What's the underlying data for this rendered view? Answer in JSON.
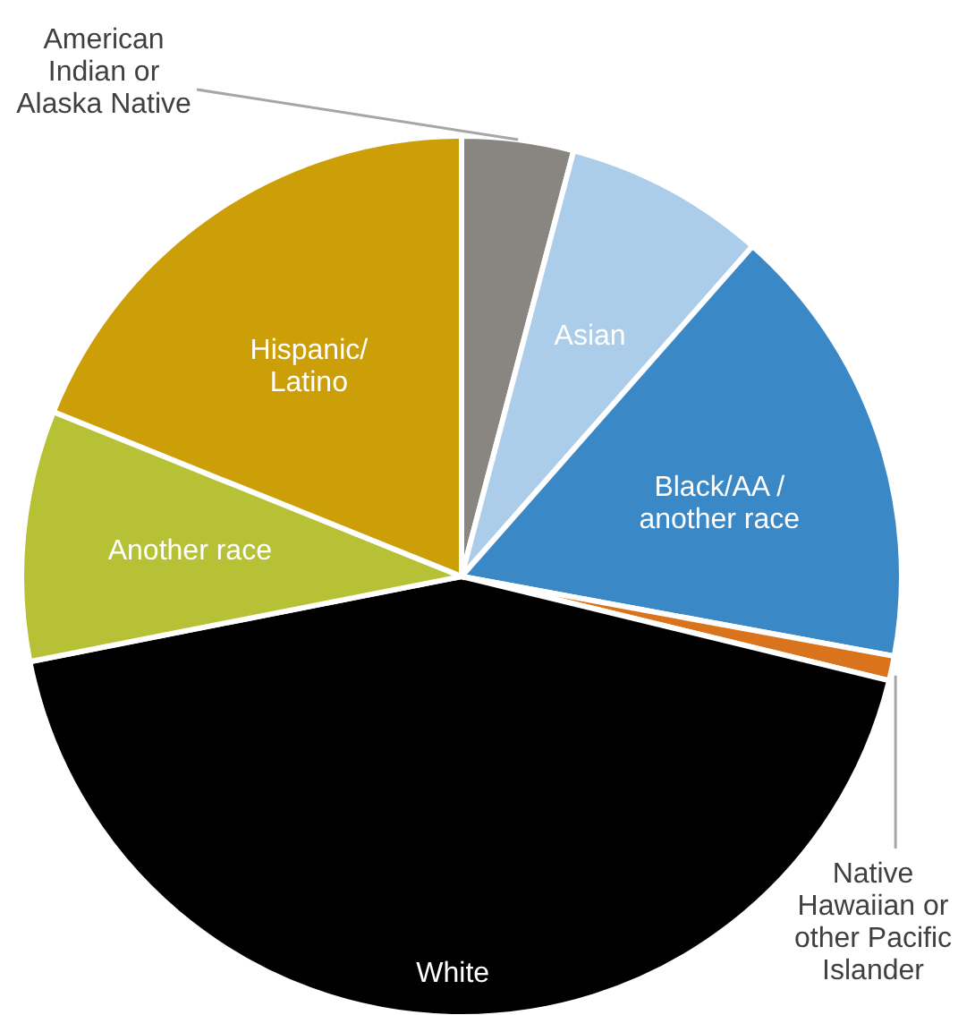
{
  "chart_data": {
    "type": "pie",
    "categories": [
      "American Indian or Alaska Native",
      "Asian",
      "Black/AA / another race",
      "Native Hawaiian or other Pacific Islander",
      "White",
      "Another race",
      "Hispanic/ Latino"
    ],
    "values": [
      4.1,
      7.4,
      16.4,
      0.9,
      43.1,
      9.2,
      18.9
    ],
    "colors": [
      "#898581",
      "#abcdea",
      "#3b88c7",
      "#d9741c",
      "#000000",
      "#b7c136",
      "#cc9e07"
    ]
  }
}
